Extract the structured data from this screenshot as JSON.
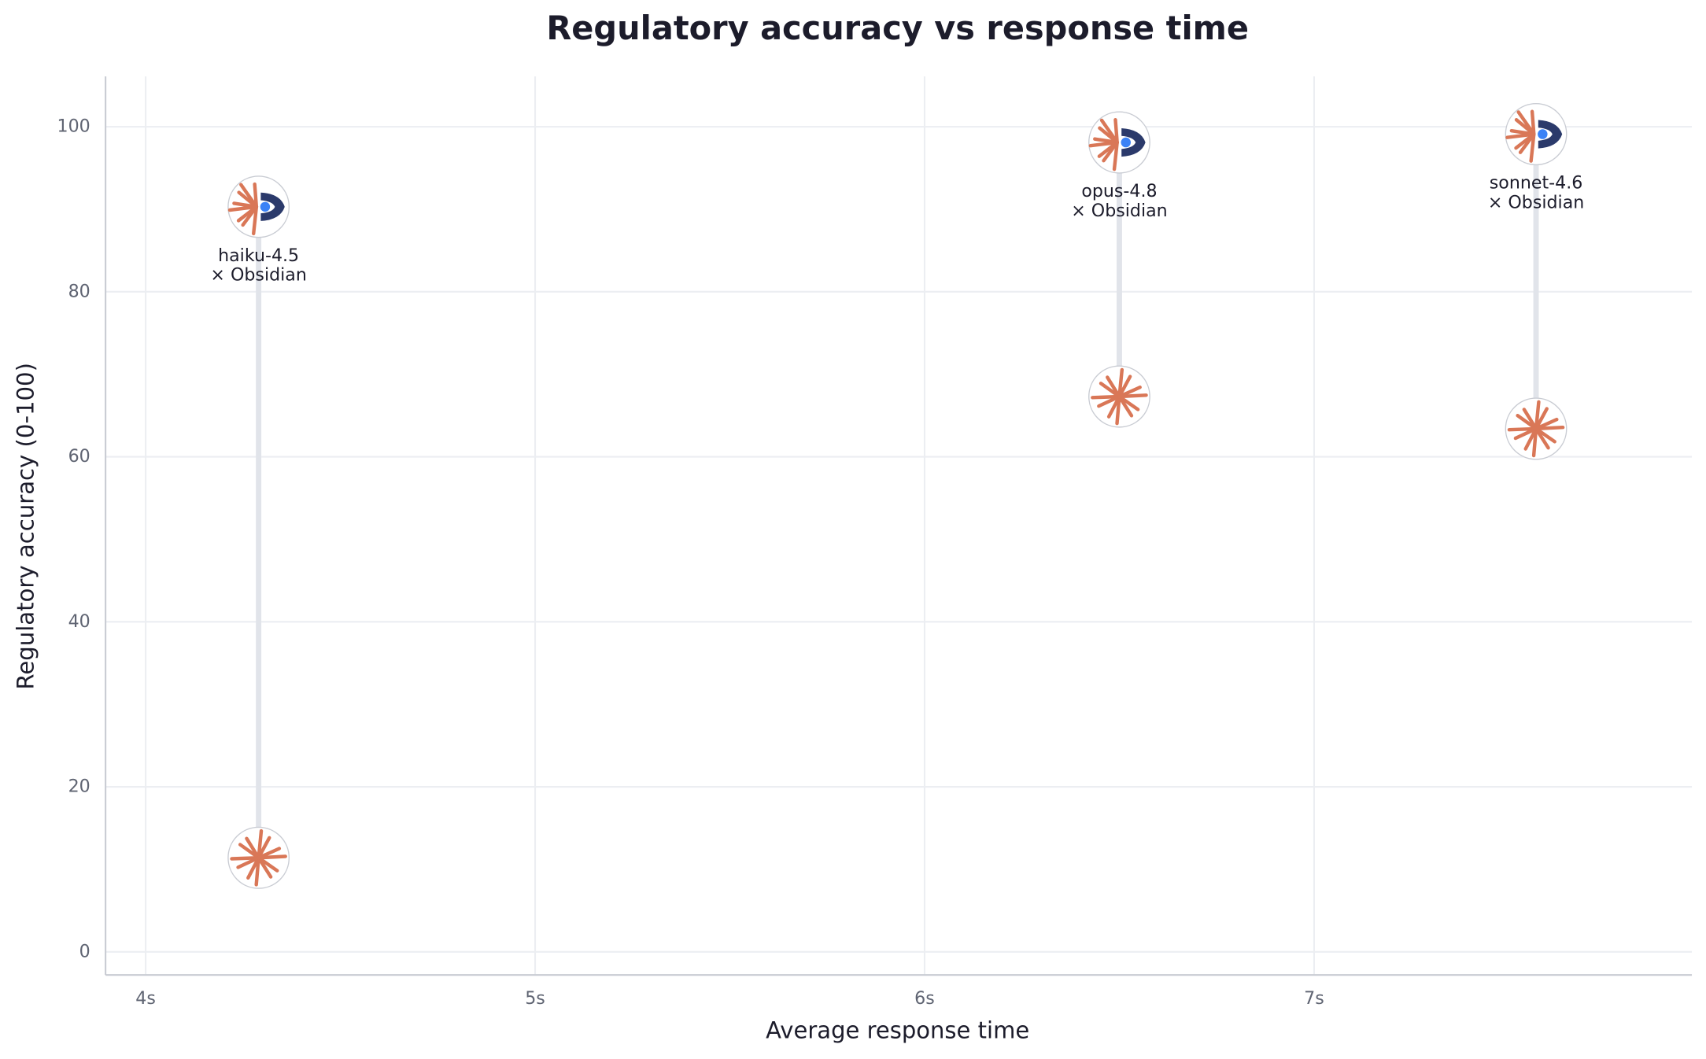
{
  "chart_data": {
    "type": "dumbbell",
    "title": "Regulatory accuracy vs response time",
    "x_label": "Average response time",
    "y_label": "Regulatory accuracy (0-100)",
    "categories": [
      "haiku-4.5",
      "opus-4.8",
      "sonnet-4.6"
    ],
    "suffix": "× Obsidian",
    "x": [
      4.29,
      6.5,
      7.57
    ],
    "values": [
      11.4,
      67.3,
      63.4
    ],
    "values_obsidian": [
      90.3,
      98.1,
      99.1
    ],
    "color": "#d97757",
    "accent_color": "#2b3a6b",
    "connector_color": "#e1e4ea",
    "xlim": [
      3.897,
      7.97
    ],
    "ylim": [
      -2.8,
      106.1
    ],
    "xticks": [
      {
        "value": 4,
        "label": "4s"
      },
      {
        "value": 5,
        "label": "5s"
      },
      {
        "value": 6,
        "label": "6s"
      },
      {
        "value": 7,
        "label": "7s"
      }
    ],
    "yticks": [
      0,
      20,
      40,
      60,
      80,
      100
    ],
    "grid": true
  }
}
